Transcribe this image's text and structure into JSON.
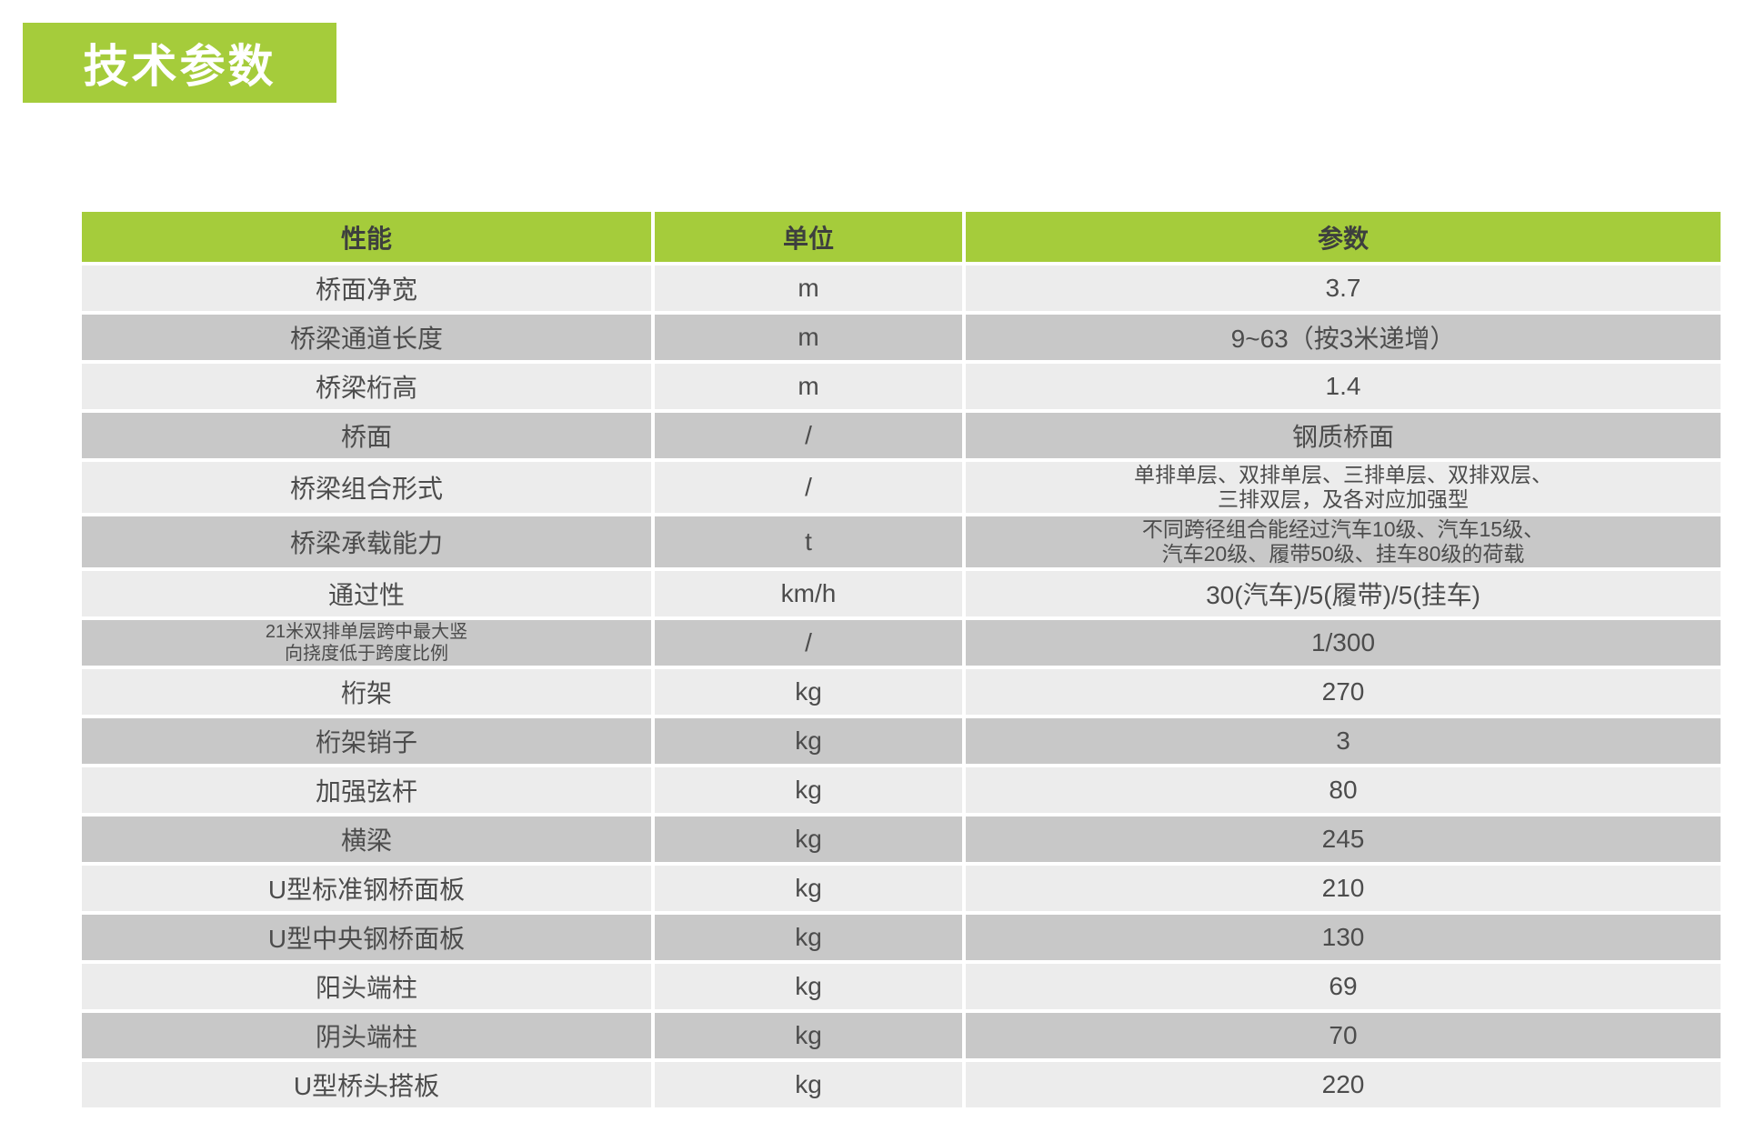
{
  "title": "技术参数",
  "colors": {
    "green": "#a5cc3b",
    "row_light": "#ececec",
    "row_dark": "#c8c8c8",
    "text": "#4c4c4c",
    "header_text": "#3d3f3e",
    "title_text": "#ffffff"
  },
  "table": {
    "headers": [
      "性能",
      "单位",
      "参数"
    ],
    "rows": [
      {
        "name": "桥面净宽",
        "unit": "m",
        "value": "3.7"
      },
      {
        "name": "桥梁通道长度",
        "unit": "m",
        "value": "9~63（按3米递增）"
      },
      {
        "name": "桥梁桁高",
        "unit": "m",
        "value": "1.4"
      },
      {
        "name": "桥面",
        "unit": "/",
        "value": "钢质桥面"
      },
      {
        "name": "桥梁组合形式",
        "unit": "/",
        "value_lines": [
          "单排单层、双排单层、三排单层、双排双层、",
          "三排双层，及各对应加强型"
        ]
      },
      {
        "name": "桥梁承载能力",
        "unit": "t",
        "value_lines": [
          "不同跨径组合能经过汽车10级、汽车15级、",
          "汽车20级、履带50级、挂车80级的荷载"
        ]
      },
      {
        "name": "通过性",
        "unit": "km/h",
        "value": "30(汽车)/5(履带)/5(挂车)"
      },
      {
        "name_lines": [
          "21米双排单层跨中最大竖",
          "向挠度低于跨度比例"
        ],
        "unit": "/",
        "value": "1/300"
      },
      {
        "name": "桁架",
        "unit": "kg",
        "value": "270"
      },
      {
        "name": "桁架销子",
        "unit": "kg",
        "value": "3"
      },
      {
        "name": "加强弦杆",
        "unit": "kg",
        "value": "80"
      },
      {
        "name": "横梁",
        "unit": "kg",
        "value": "245"
      },
      {
        "name": "U型标准钢桥面板",
        "unit": "kg",
        "value": "210"
      },
      {
        "name": "U型中央钢桥面板",
        "unit": "kg",
        "value": "130"
      },
      {
        "name": "阳头端柱",
        "unit": "kg",
        "value": "69"
      },
      {
        "name": "阴头端柱",
        "unit": "kg",
        "value": "70"
      },
      {
        "name": "U型桥头搭板",
        "unit": "kg",
        "value": "220"
      }
    ]
  }
}
